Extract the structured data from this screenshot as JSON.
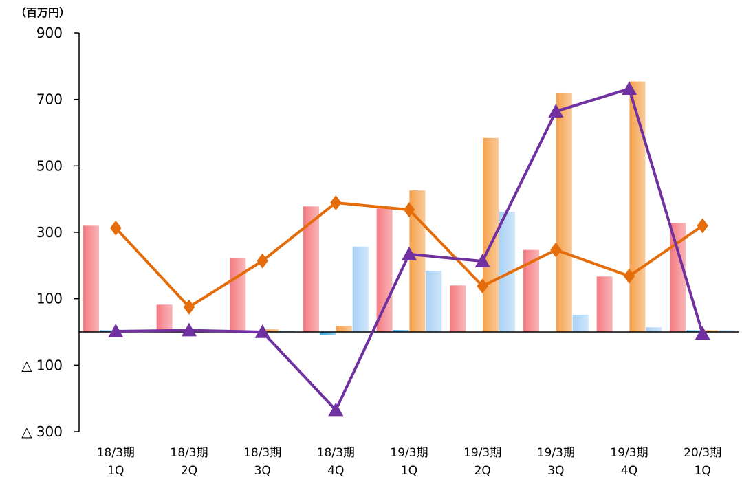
{
  "chart_data": {
    "type": "bar",
    "unit_label": "（百万円）",
    "ylim": [
      -300,
      900
    ],
    "y_ticks": [
      {
        "value": 900,
        "label": "900"
      },
      {
        "value": 700,
        "label": "700"
      },
      {
        "value": 500,
        "label": "500"
      },
      {
        "value": 300,
        "label": "300"
      },
      {
        "value": 100,
        "label": "100"
      },
      {
        "value": -100,
        "label": "△ 100"
      },
      {
        "value": -300,
        "label": "△ 300"
      }
    ],
    "categories": [
      {
        "line1": "18/3期",
        "line2": "1Q"
      },
      {
        "line1": "18/3期",
        "line2": "2Q"
      },
      {
        "line1": "18/3期",
        "line2": "3Q"
      },
      {
        "line1": "18/3期",
        "line2": "4Q"
      },
      {
        "line1": "19/3期",
        "line2": "1Q"
      },
      {
        "line1": "19/3期",
        "line2": "2Q"
      },
      {
        "line1": "19/3期",
        "line2": "3Q"
      },
      {
        "line1": "19/3期",
        "line2": "4Q"
      },
      {
        "line1": "20/3期",
        "line2": "1Q"
      }
    ],
    "bar_series": [
      {
        "color": "#f47a80",
        "values": [
          320,
          82,
          222,
          378,
          372,
          140,
          247,
          167,
          328
        ]
      },
      {
        "color": "#39a8dc",
        "values": [
          5,
          0,
          0,
          -10,
          6,
          0,
          0,
          0,
          5
        ]
      },
      {
        "color": "#f5a04a",
        "values": [
          0,
          0,
          8,
          18,
          426,
          584,
          718,
          754,
          5
        ]
      },
      {
        "color": "#a9d1f5",
        "values": [
          0,
          0,
          4,
          257,
          184,
          362,
          52,
          14,
          5
        ]
      }
    ],
    "line_series": [
      {
        "color": "#e46c0a",
        "marker": "diamond",
        "values": [
          313,
          75,
          214,
          389,
          368,
          138,
          247,
          168,
          320
        ]
      },
      {
        "color": "#7030a0",
        "marker": "triangle",
        "values": [
          2,
          5,
          0,
          -235,
          234,
          213,
          664,
          732,
          -5
        ]
      }
    ],
    "grid": false
  }
}
